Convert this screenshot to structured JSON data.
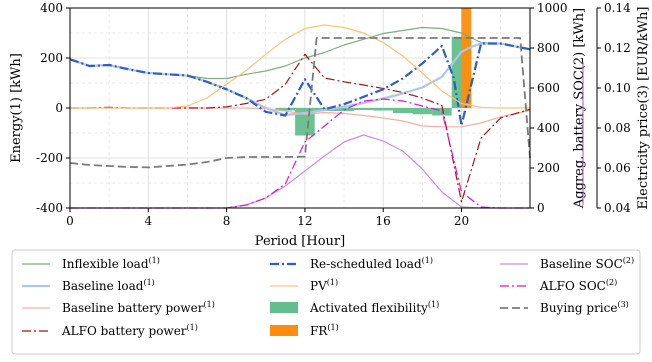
{
  "chart_data": {
    "type": "line",
    "xlabel": "Period [Hour]",
    "ylabel_left": "Energy(1) [kWh]",
    "ylabel_right1": "Aggreg. battery SOC(2) [kWh]",
    "ylabel_right2": "Electricity price(3) [EUR/kWh]",
    "xlim": [
      0,
      23.5
    ],
    "ylim_left": [
      -400,
      400
    ],
    "ylim_right1": [
      0,
      1000
    ],
    "ylim_right2": [
      0.04,
      0.14
    ],
    "xticks": [
      0,
      4,
      8,
      12,
      16,
      20
    ],
    "yticks_left": [
      -400,
      -200,
      0,
      200,
      400
    ],
    "yticks_right1": [
      0,
      200,
      400,
      600,
      800,
      1000
    ],
    "yticks_right2": [
      "0.04",
      "0.06",
      "0.08",
      "0.10",
      "0.12",
      "0.14"
    ],
    "grid": true,
    "legend_position": "bottom",
    "series": [
      {
        "name": "Inflexible load",
        "sup": "(1)",
        "axis": "left",
        "color": "#7fae7f",
        "style": "solid",
        "x": [
          0,
          1,
          2,
          3,
          4,
          5,
          6,
          7,
          8,
          9,
          10,
          11,
          12,
          13,
          14,
          15,
          16,
          17,
          18,
          19,
          20,
          21,
          22,
          23.5
        ],
        "y": [
          195,
          168,
          172,
          155,
          140,
          135,
          130,
          118,
          118,
          135,
          148,
          168,
          200,
          222,
          252,
          275,
          298,
          310,
          322,
          318,
          300,
          262,
          258,
          235
        ]
      },
      {
        "name": "Baseline load",
        "sup": "(1)",
        "axis": "left",
        "color": "#aec7e8",
        "style": "solid-thick",
        "x": [
          0,
          1,
          2,
          3,
          4,
          5,
          6,
          7,
          8,
          9,
          10,
          11,
          12,
          13,
          14,
          15,
          16,
          17,
          18,
          19,
          20,
          20.5,
          21,
          22,
          23.5
        ],
        "y": [
          195,
          168,
          172,
          155,
          140,
          135,
          130,
          105,
          75,
          40,
          0,
          -28,
          -20,
          -8,
          5,
          20,
          38,
          58,
          82,
          125,
          225,
          245,
          258,
          258,
          235
        ]
      },
      {
        "name": "Baseline battery power",
        "sup": "(1)",
        "axis": "left",
        "color": "#f4b0a4",
        "style": "solid",
        "x": [
          0,
          1,
          2,
          3,
          4,
          5,
          6,
          7,
          8,
          9,
          10,
          11,
          12,
          13,
          14,
          15,
          16,
          17,
          18,
          19,
          20,
          21,
          22,
          23.5
        ],
        "y": [
          0,
          0,
          0,
          0,
          0,
          0,
          0,
          0,
          0,
          0,
          -3,
          -12,
          -25,
          -18,
          -22,
          -30,
          -40,
          -52,
          -72,
          -75,
          -75,
          -60,
          -35,
          -10
        ]
      },
      {
        "name": "ALFO battery power",
        "sup": "(1)",
        "axis": "left",
        "color": "#a31515",
        "style": "dashdot",
        "x": [
          0,
          1,
          2,
          3,
          4,
          5,
          6,
          7,
          8,
          9,
          10,
          11,
          12,
          13,
          14,
          15,
          16,
          17,
          18,
          19,
          20,
          21,
          22,
          23.5
        ],
        "y": [
          0,
          0,
          3,
          0,
          0,
          0,
          0,
          0,
          5,
          18,
          35,
          95,
          215,
          120,
          105,
          92,
          78,
          62,
          40,
          10,
          -375,
          -120,
          -40,
          -5
        ]
      },
      {
        "name": "Re-scheduled load",
        "sup": "(1)",
        "axis": "left",
        "color": "#2f5fc4",
        "style": "dashdot-thick",
        "x": [
          0,
          1,
          2,
          3,
          4,
          5,
          6,
          7,
          8,
          9,
          10,
          11,
          12,
          13,
          14,
          15,
          16,
          17,
          18,
          19,
          19.6,
          20,
          21,
          22,
          23.5
        ],
        "y": [
          195,
          168,
          172,
          155,
          140,
          135,
          130,
          105,
          75,
          40,
          -15,
          -30,
          115,
          -5,
          15,
          45,
          75,
          118,
          178,
          248,
          120,
          -70,
          258,
          258,
          235
        ]
      },
      {
        "name": "PV",
        "sup": "(1)",
        "axis": "left",
        "color": "#f8c57a",
        "style": "solid",
        "x": [
          0,
          1,
          2,
          3,
          4,
          5,
          6,
          7,
          8,
          9,
          10,
          11,
          12,
          13,
          14,
          15,
          16,
          17,
          18,
          19,
          20,
          21,
          22,
          23.5
        ],
        "y": [
          0,
          0,
          0,
          0,
          0,
          0,
          8,
          40,
          95,
          150,
          215,
          275,
          318,
          332,
          322,
          300,
          262,
          208,
          140,
          68,
          18,
          3,
          0,
          0
        ]
      },
      {
        "name": "Baseline SOC",
        "sup": "(2)",
        "axis": "right1",
        "color": "#c991dc",
        "style": "solid",
        "x": [
          0,
          2,
          4,
          6,
          8,
          9,
          10,
          11,
          12,
          13,
          14,
          15,
          16,
          17,
          18,
          19,
          20,
          21,
          22,
          23.5
        ],
        "y": [
          0,
          0,
          0,
          0,
          0,
          15,
          50,
          110,
          185,
          260,
          330,
          365,
          335,
          285,
          195,
          80,
          5,
          0,
          0,
          0
        ]
      },
      {
        "name": "ALFO SOC",
        "sup": "(2)",
        "axis": "right1",
        "color": "#e015d8",
        "style": "dashdot",
        "x": [
          0,
          2,
          4,
          6,
          8,
          9,
          10,
          11,
          12,
          13,
          14,
          15,
          16,
          17,
          18,
          19,
          20,
          21,
          22,
          23.5
        ],
        "y": [
          0,
          0,
          0,
          0,
          0,
          15,
          50,
          120,
          330,
          410,
          490,
          535,
          545,
          535,
          510,
          485,
          80,
          5,
          0,
          0
        ]
      },
      {
        "name": "Buying price",
        "sup": "(3)",
        "axis": "right2",
        "color": "#7a7a7a",
        "style": "dashed",
        "x": [
          0,
          1,
          2,
          3,
          4,
          5,
          6,
          7,
          8,
          9,
          10,
          11,
          12,
          12.6,
          13,
          14,
          15,
          16,
          17,
          18,
          19,
          20,
          21,
          22,
          23,
          23.5
        ],
        "y": [
          0.0625,
          0.0615,
          0.061,
          0.0605,
          0.0603,
          0.061,
          0.0617,
          0.063,
          0.065,
          0.0655,
          0.0655,
          0.0655,
          0.0657,
          0.125,
          0.125,
          0.125,
          0.125,
          0.125,
          0.125,
          0.125,
          0.125,
          0.125,
          0.125,
          0.125,
          0.125,
          0.065
        ]
      }
    ],
    "bars": [
      {
        "name": "Activated flexibility",
        "sup": "(1)",
        "axis": "left",
        "color": "#62be8b",
        "width": 1.0,
        "x": [
          11,
          12,
          13,
          14,
          15,
          16,
          17,
          18,
          19,
          20
        ],
        "y": [
          -10,
          -110,
          -12,
          -12,
          -8,
          -10,
          -20,
          -25,
          -30,
          285
        ]
      },
      {
        "name": "FR",
        "sup": "(1)",
        "axis": "left",
        "color": "#ff8c0d",
        "width": 0.5,
        "x": [
          20.25
        ],
        "y": [
          400
        ]
      }
    ]
  }
}
